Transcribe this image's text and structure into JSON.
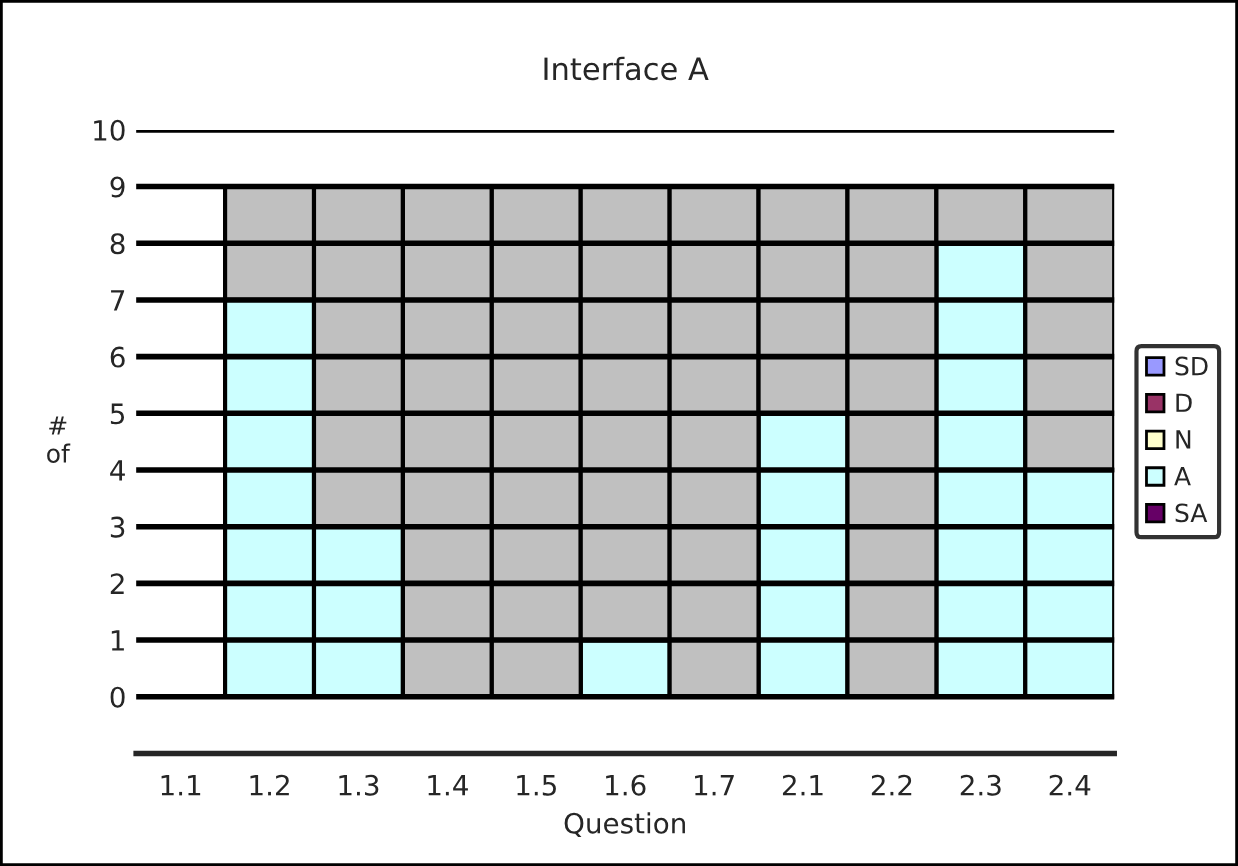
{
  "chart_data": {
    "type": "bar",
    "title": "Interface A",
    "xlabel": "Question",
    "ylabel": "#\nof",
    "categories": [
      "1.1",
      "1.2",
      "1.3",
      "1.4",
      "1.5",
      "1.6",
      "1.7",
      "2.1",
      "2.2",
      "2.3",
      "2.4"
    ],
    "stacked": true,
    "series": [
      {
        "name": "SD",
        "color": "#9999ff",
        "values": [
          null,
          null,
          null,
          null,
          null,
          null,
          null,
          null,
          null,
          null,
          null
        ]
      },
      {
        "name": "D",
        "color": "#993366",
        "values": [
          null,
          null,
          null,
          null,
          null,
          null,
          null,
          null,
          null,
          null,
          null
        ]
      },
      {
        "name": "N",
        "color": "#ffffcc",
        "values": [
          null,
          null,
          null,
          null,
          null,
          null,
          null,
          null,
          null,
          null,
          null
        ]
      },
      {
        "name": "A",
        "color": "#ccffff",
        "values": [
          null,
          7,
          3,
          null,
          null,
          1,
          null,
          5,
          null,
          8,
          4
        ]
      },
      {
        "name": "SA",
        "color": "#660066",
        "values": [
          null,
          null,
          null,
          null,
          null,
          null,
          null,
          null,
          null,
          null,
          null
        ]
      },
      {
        "color": "#c0c0c0",
        "values": [
          null,
          2,
          6,
          9,
          9,
          8,
          9,
          4,
          9,
          1,
          5
        ]
      }
    ],
    "ylim": [
      -1,
      10
    ],
    "yticks": [
      0,
      1,
      2,
      3,
      4,
      5,
      6,
      7,
      8,
      9,
      10
    ],
    "grid": "y",
    "legend": "right"
  }
}
